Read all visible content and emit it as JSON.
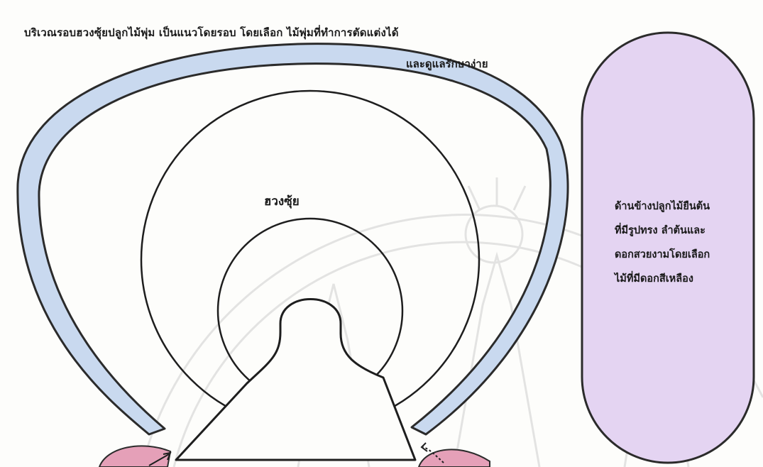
{
  "annotations": {
    "perimeter_note_line1": "บริเวณรอบฮวงซุ้ยปลูกไม้พุ่ม  เป็นแนวโดยรอบ โดยเลือก  ไม้พุ่มที่ทำการตัดแต่งได้",
    "perimeter_note_line2": "และดูแลรักษาง่าย",
    "center_label": "ฮวงซุ้ย",
    "side_note_lines": [
      "ด้านข้างปลูกไม้ยืนต้น",
      "ที่มีรูปทรง ลำต้นและ",
      "ดอกสวยงามโดยเลือก",
      "ไม้ที่มีดอกสีเหลือง"
    ]
  },
  "colors": {
    "hedge_fill": "#c9d9ef",
    "hedge_stroke": "#2b2b2b",
    "side_bed_fill": "#e4d4f2",
    "side_bed_border": "#7a5a93",
    "pink_shrub": "#e5a0b8",
    "watermark": "#cfcfcf",
    "line": "#1e1e1e"
  }
}
